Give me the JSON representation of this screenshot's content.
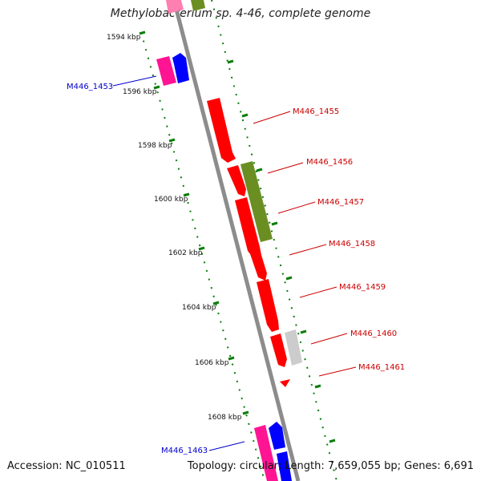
{
  "title": "Methylobacterium sp. 4-46, complete genome",
  "footer": {
    "accession": "Accession: NC_010511",
    "summary": "Topology: circular; Length: 7,659,055 bp; Genes: 6,691"
  },
  "colors": {
    "backbone": "#8c8c8c",
    "track_tick": "#0a7d0a",
    "red_gene": "#ff0000",
    "olive_gene": "#6b8e23",
    "grey_gene": "#cccccc",
    "pink_gene": "#ff1493",
    "blue_gene": "#0000ff",
    "red_label": "#cc0000",
    "blue_label": "#0000cc"
  },
  "scale_labels": [
    "1594 kbp",
    "1596 kbp",
    "1598 kbp",
    "1600 kbp",
    "1602 kbp",
    "1604 kbp",
    "1606 kbp",
    "1608 kbp"
  ],
  "gene_labels": [
    {
      "id": "M446_1453",
      "color": "blue"
    },
    {
      "id": "M446_1455",
      "color": "red"
    },
    {
      "id": "M446_1456",
      "color": "red"
    },
    {
      "id": "M446_1457",
      "color": "red"
    },
    {
      "id": "M446_1458",
      "color": "red"
    },
    {
      "id": "M446_1459",
      "color": "red"
    },
    {
      "id": "M446_1460",
      "color": "red"
    },
    {
      "id": "M446_1461",
      "color": "red"
    },
    {
      "id": "M446_1463",
      "color": "blue"
    }
  ]
}
